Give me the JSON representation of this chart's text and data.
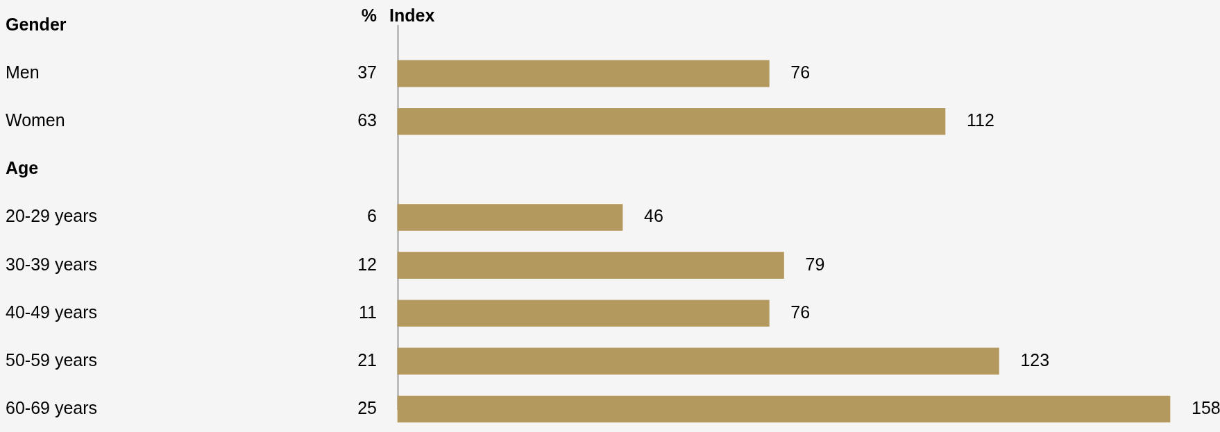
{
  "chart_data": {
    "type": "bar",
    "orientation": "horizontal",
    "xlabel": "Index",
    "categories": [
      "Gender",
      "Men",
      "Women",
      "Age",
      "20-29 years",
      "30-39 years",
      "40-49 years",
      "50-59 years",
      "60-69 years"
    ],
    "values": [
      null,
      76,
      112,
      null,
      46,
      79,
      76,
      123,
      158
    ],
    "color": "#b4995e",
    "data_labels": true,
    "grid": false,
    "legend": false,
    "tick_labels": "y",
    "annotations": [
      "%",
      "37",
      "63",
      "6",
      "12",
      "11",
      "21",
      "25"
    ]
  }
}
